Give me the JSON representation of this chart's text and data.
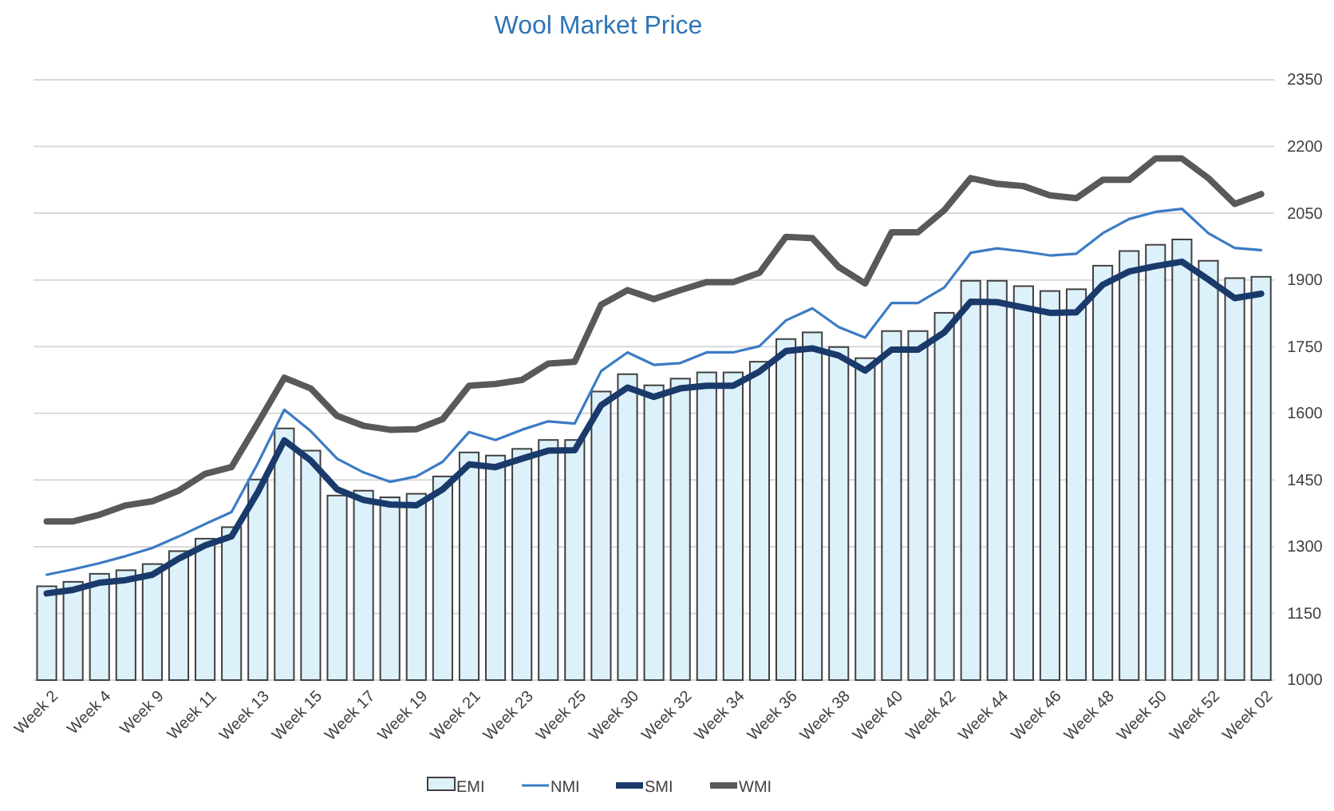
{
  "chart_data": {
    "type": "bar",
    "title": "Wool Market Price",
    "categories": [
      "Week 2",
      null,
      "Week 4",
      null,
      "Week 9",
      null,
      "Week 11",
      null,
      "Week 13",
      null,
      "Week 15",
      null,
      "Week 17",
      null,
      "Week 19",
      null,
      "Week 21",
      null,
      "Week 23",
      null,
      "Week 25",
      null,
      "Week 30",
      null,
      "Week 32",
      null,
      "Week 34",
      null,
      "Week 36",
      null,
      "Week 38",
      null,
      "Week 40",
      null,
      "Week 42",
      null,
      "Week 44",
      null,
      "Week 46",
      null,
      "Week 48",
      null,
      "Week 50",
      null,
      "Week 52",
      null,
      "Week 02"
    ],
    "series": [
      {
        "name": "EMI",
        "type": "bar",
        "color": "#ddf1fb",
        "values": [
          1211,
          1221,
          1239,
          1247,
          1261,
          1290,
          1318,
          1344,
          1451,
          1566,
          1516,
          1415,
          1426,
          1411,
          1419,
          1458,
          1512,
          1505,
          1520,
          1540,
          1540,
          1649,
          1688,
          1663,
          1678,
          1692,
          1692,
          1716,
          1767,
          1782,
          1749,
          1724,
          1785,
          1785,
          1826,
          1898,
          1898,
          1886,
          1875,
          1879,
          1932,
          1965,
          1979,
          1991,
          1943,
          1904,
          1907
        ]
      },
      {
        "name": "NMI",
        "type": "line",
        "color": "#3c7bc4",
        "values": [
          1237,
          1249,
          1263,
          1279,
          1297,
          1323,
          1351,
          1378,
          1488,
          1608,
          1560,
          1498,
          1467,
          1446,
          1458,
          1491,
          1558,
          1540,
          1563,
          1582,
          1577,
          1695,
          1737,
          1709,
          1713,
          1737,
          1737,
          1751,
          1809,
          1836,
          1794,
          1770,
          1848,
          1848,
          1883,
          1961,
          1971,
          1964,
          1955,
          1959,
          2005,
          2037,
          2053,
          2060,
          2005,
          1972,
          1967
        ]
      },
      {
        "name": "SMI",
        "type": "line",
        "color": "#1a3a6b",
        "values": [
          1195,
          1203,
          1219,
          1225,
          1237,
          1273,
          1303,
          1323,
          1423,
          1539,
          1494,
          1429,
          1405,
          1395,
          1393,
          1429,
          1485,
          1479,
          1498,
          1516,
          1517,
          1618,
          1658,
          1637,
          1656,
          1662,
          1662,
          1694,
          1740,
          1746,
          1730,
          1696,
          1743,
          1743,
          1782,
          1851,
          1850,
          1838,
          1826,
          1827,
          1889,
          1919,
          1931,
          1941,
          1901,
          1859,
          1869
        ]
      },
      {
        "name": "WMI",
        "type": "line",
        "color": "#595959",
        "values": [
          1357,
          1357,
          1372,
          1393,
          1402,
          1426,
          1464,
          1479,
          1578,
          1680,
          1656,
          1594,
          1572,
          1563,
          1564,
          1587,
          1662,
          1666,
          1675,
          1712,
          1716,
          1844,
          1877,
          1857,
          1877,
          1895,
          1895,
          1916,
          1997,
          1994,
          1929,
          1892,
          2007,
          2007,
          2057,
          2129,
          2116,
          2111,
          2090,
          2084,
          2125,
          2125,
          2173,
          2173,
          2129,
          2071,
          2093
        ]
      }
    ],
    "ylim": [
      1000,
      2350
    ],
    "yticks": [
      1000,
      1150,
      1300,
      1450,
      1600,
      1750,
      1900,
      2050,
      2200,
      2350
    ],
    "grid": "y",
    "legend": "bottom"
  }
}
